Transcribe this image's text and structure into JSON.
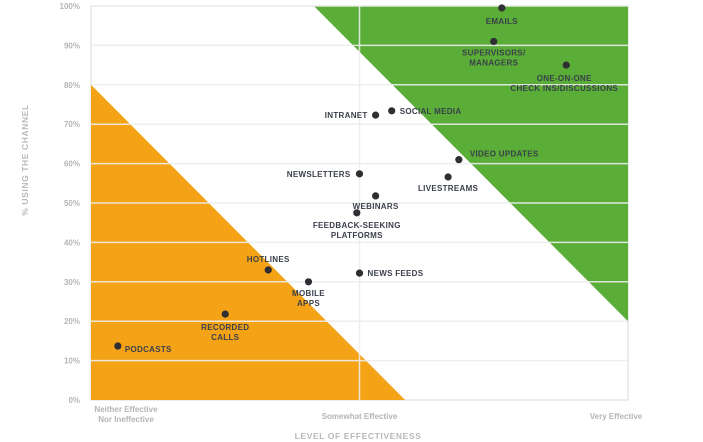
{
  "chart_data": {
    "type": "scatter",
    "title": "",
    "xlabel": "LEVEL OF EFFECTIVENESS",
    "ylabel": "% USING THE CHANNEL",
    "xlim": [
      0,
      2
    ],
    "ylim": [
      0,
      100
    ],
    "x_ticks": [
      {
        "value": 0,
        "label": [
          "Neither Effective",
          "Nor Ineffective"
        ]
      },
      {
        "value": 1,
        "label": [
          "Somewhat Effective"
        ]
      },
      {
        "value": 2,
        "label": [
          "Very Effective"
        ]
      }
    ],
    "y_ticks": [
      0,
      10,
      20,
      30,
      40,
      50,
      60,
      70,
      80,
      90,
      100
    ],
    "y_tick_suffix": "%",
    "grid": true,
    "regions": [
      {
        "name": "low-effectiveness-zone",
        "color": "#f5a316",
        "polygon": [
          [
            0,
            0
          ],
          [
            0,
            80
          ],
          [
            1.17,
            0
          ]
        ]
      },
      {
        "name": "high-effectiveness-zone",
        "color": "#5aad37",
        "polygon": [
          [
            0.83,
            100
          ],
          [
            2,
            100
          ],
          [
            2,
            20
          ]
        ]
      }
    ],
    "point_color": "#2e2e33",
    "points": [
      {
        "label": [
          "EMAILS"
        ],
        "x": 1.53,
        "y": 99.5
      },
      {
        "label": [
          "SUPERVISORS/",
          "MANAGERS"
        ],
        "x": 1.5,
        "y": 91
      },
      {
        "label": [
          "ONE-ON-ONE",
          "CHECK INS/DISCUSSIONS"
        ],
        "x": 1.77,
        "y": 85
      },
      {
        "label": [
          "INTRANET"
        ],
        "x": 1.06,
        "y": 72.3
      },
      {
        "label": [
          "SOCIAL MEDIA"
        ],
        "x": 1.12,
        "y": 73.4
      },
      {
        "label": [
          "VIDEO UPDATES"
        ],
        "x": 1.37,
        "y": 61
      },
      {
        "label": [
          "NEWSLETTERS"
        ],
        "x": 1.0,
        "y": 57.4
      },
      {
        "label": [
          "LIVESTREAMS"
        ],
        "x": 1.33,
        "y": 56.6
      },
      {
        "label": [
          "WEBINARS"
        ],
        "x": 1.06,
        "y": 51.8
      },
      {
        "label": [
          "FEEDBACK-SEEKING",
          "PLATFORMS"
        ],
        "x": 0.99,
        "y": 47.5
      },
      {
        "label": [
          "NEWS FEEDS"
        ],
        "x": 1.0,
        "y": 32.2
      },
      {
        "label": [
          "HOTLINES"
        ],
        "x": 0.66,
        "y": 33
      },
      {
        "label": [
          "MOBILE",
          "APPS"
        ],
        "x": 0.81,
        "y": 30
      },
      {
        "label": [
          "RECORDED",
          "CALLS"
        ],
        "x": 0.5,
        "y": 21.8
      },
      {
        "label": [
          "PODCASTS"
        ],
        "x": 0.1,
        "y": 13.7
      }
    ]
  }
}
